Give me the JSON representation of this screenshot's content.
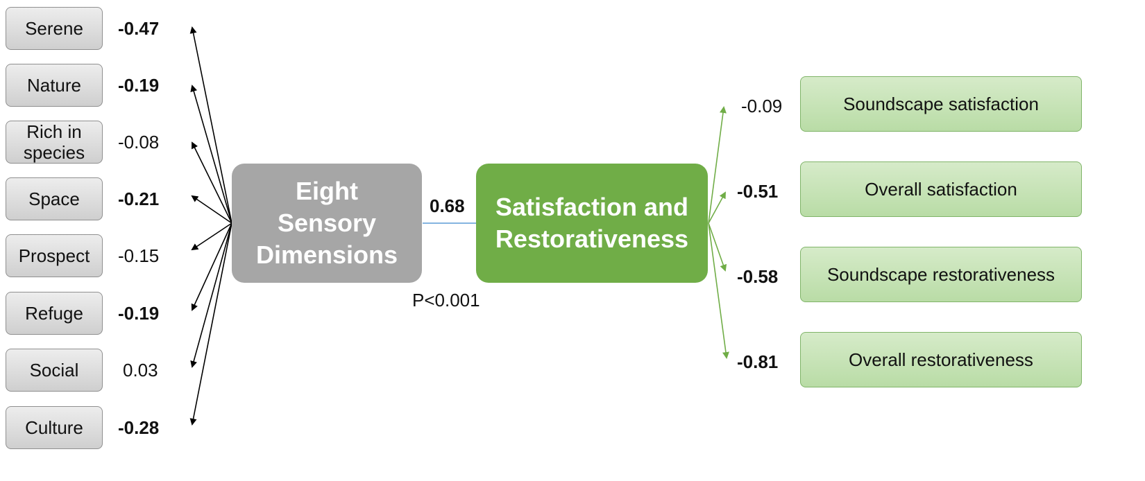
{
  "dimensions": [
    {
      "label": "Serene",
      "coef": "-0.47",
      "bold": true
    },
    {
      "label": "Nature",
      "coef": "-0.19",
      "bold": true
    },
    {
      "label": "Rich in species",
      "coef": "-0.08",
      "bold": false
    },
    {
      "label": "Space",
      "coef": "-0.21",
      "bold": true
    },
    {
      "label": "Prospect",
      "coef": "-0.15",
      "bold": false
    },
    {
      "label": "Refuge",
      "coef": "-0.19",
      "bold": true
    },
    {
      "label": "Social",
      "coef": "0.03",
      "bold": false
    },
    {
      "label": "Culture",
      "coef": "-0.28",
      "bold": true
    }
  ],
  "latent_left": {
    "label": "Eight Sensory Dimensions"
  },
  "latent_right": {
    "label": "Satisfaction and Restorativeness"
  },
  "path": {
    "coef": "0.68",
    "p_value": "P<0.001"
  },
  "outcomes": [
    {
      "label": "Soundscape satisfaction",
      "coef": "-0.09",
      "bold": false
    },
    {
      "label": "Overall satisfaction",
      "coef": "-0.51",
      "bold": true
    },
    {
      "label": "Soundscape restorativeness",
      "coef": "-0.58",
      "bold": true
    },
    {
      "label": "Overall restorativeness",
      "coef": "-0.81",
      "bold": true
    }
  ],
  "colors": {
    "grey": "#a6a6a6",
    "green": "#70ad47",
    "path_line": "#5b9bd5"
  }
}
